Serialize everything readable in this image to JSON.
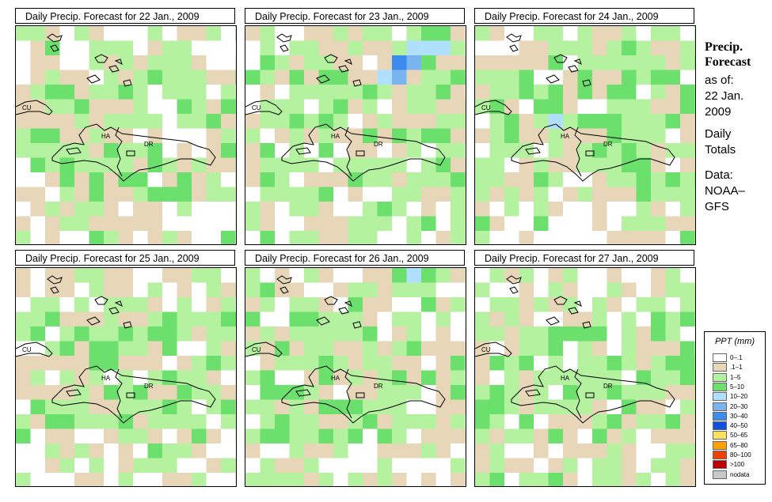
{
  "panels": [
    {
      "title": "Daily Precip. Forecast for  22 Jan., 2009",
      "seed": 11,
      "hot": [
        [
          6,
          4,
          2
        ],
        [
          5,
          4,
          2
        ],
        [
          7,
          3,
          1
        ],
        [
          5,
          5,
          1
        ],
        [
          6,
          5,
          1
        ],
        [
          5,
          6,
          1
        ],
        [
          4,
          4,
          1
        ]
      ]
    },
    {
      "title": "Daily Precip. Forecast for  23 Jan., 2009",
      "seed": 23,
      "hot": [
        [
          10,
          2,
          6
        ],
        [
          9,
          3,
          4
        ],
        [
          10,
          3,
          5
        ],
        [
          11,
          2,
          5
        ],
        [
          11,
          1,
          4
        ],
        [
          12,
          1,
          4
        ],
        [
          13,
          1,
          4
        ],
        [
          13,
          0,
          3
        ],
        [
          12,
          0,
          3
        ],
        [
          11,
          0,
          2
        ],
        [
          8,
          4,
          3
        ],
        [
          9,
          4,
          2
        ],
        [
          8,
          5,
          2
        ],
        [
          7,
          4,
          2
        ],
        [
          12,
          2,
          3
        ],
        [
          13,
          3,
          2
        ],
        [
          14,
          1,
          2
        ],
        [
          5,
          6,
          3
        ],
        [
          6,
          6,
          2
        ],
        [
          5,
          7,
          2
        ],
        [
          10,
          1,
          2
        ],
        [
          12,
          3,
          2
        ]
      ]
    },
    {
      "title": "Daily Precip. Forecast for  24 Jan., 2009",
      "seed": 37,
      "hot": [
        [
          5,
          6,
          4
        ],
        [
          6,
          6,
          2
        ],
        [
          5,
          7,
          2
        ],
        [
          4,
          7,
          1
        ],
        [
          6,
          7,
          1
        ],
        [
          8,
          2,
          2
        ],
        [
          9,
          2,
          2
        ],
        [
          9,
          1,
          2
        ],
        [
          10,
          2,
          2
        ],
        [
          8,
          1,
          1
        ]
      ]
    },
    {
      "title": "Daily Precip. Forecast for  25 Jan., 2009",
      "seed": 41,
      "hot": [
        [
          5,
          7,
          2
        ],
        [
          5,
          8,
          1
        ],
        [
          12,
          0,
          2
        ],
        [
          13,
          0,
          2
        ],
        [
          11,
          0,
          1
        ]
      ]
    },
    {
      "title": "Daily Precip. Forecast for  26 Jan., 2009",
      "seed": 53,
      "hot": [
        [
          11,
          0,
          4
        ],
        [
          12,
          0,
          3
        ],
        [
          10,
          0,
          3
        ],
        [
          13,
          0,
          2
        ],
        [
          11,
          1,
          2
        ],
        [
          12,
          1,
          2
        ],
        [
          10,
          1,
          2
        ],
        [
          9,
          1,
          1
        ],
        [
          1,
          4,
          2
        ],
        [
          0,
          5,
          2
        ],
        [
          1,
          5,
          1
        ],
        [
          3,
          4,
          2
        ],
        [
          4,
          4,
          2
        ],
        [
          5,
          5,
          2
        ],
        [
          6,
          5,
          1
        ],
        [
          7,
          6,
          1
        ]
      ]
    },
    {
      "title": "Daily Precip. Forecast for  27 Jan., 2009",
      "seed": 67,
      "hot": [
        [
          0,
          4,
          2
        ],
        [
          1,
          4,
          2
        ],
        [
          0,
          5,
          1
        ],
        [
          2,
          5,
          1
        ]
      ]
    }
  ],
  "map_labels": {
    "cu": "CU",
    "ha": "HA",
    "dr": "DR"
  },
  "side": {
    "heading_line1": "Precip.",
    "heading_line2": "Forecast",
    "asof": "as of:",
    "date_line1": "22 Jan.",
    "date_line2": "2009",
    "totals_line1": "Daily",
    "totals_line2": "Totals",
    "data_line1": "Data:",
    "data_line2": "NOAA–",
    "data_line3": "GFS"
  },
  "legend": {
    "title": "PPT (mm)",
    "entries": [
      {
        "label": "0–.1",
        "color": "#ffffff"
      },
      {
        "label": ".1–1",
        "color": "#e8d6b8"
      },
      {
        "label": "1–5",
        "color": "#b4f2a0"
      },
      {
        "label": "5–10",
        "color": "#6ce06c"
      },
      {
        "label": "10–20",
        "color": "#b0e0ff"
      },
      {
        "label": "20–30",
        "color": "#7ab4f0"
      },
      {
        "label": "30–40",
        "color": "#3c8cf0"
      },
      {
        "label": "40–50",
        "color": "#1050e0"
      },
      {
        "label": "50–65",
        "color": "#ffe060"
      },
      {
        "label": "65–80",
        "color": "#ffa000"
      },
      {
        "label": "80–100",
        "color": "#f04000"
      },
      {
        "label": ">100",
        "color": "#c00000"
      },
      {
        "label": "nodata",
        "color": "#c8c8c8"
      }
    ]
  }
}
